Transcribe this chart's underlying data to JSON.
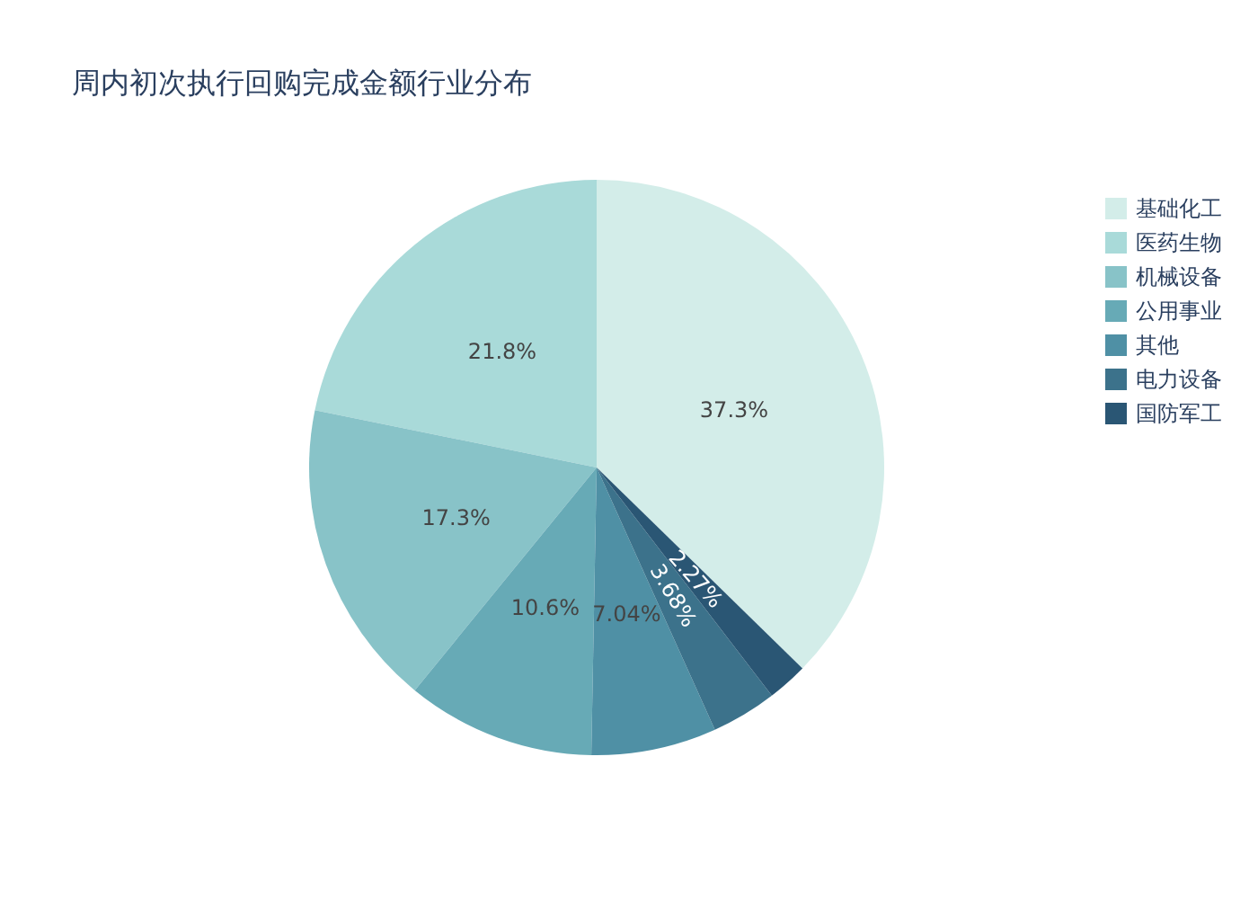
{
  "chart_data": {
    "type": "pie",
    "title": "周内初次执行回购完成金额行业分布",
    "categories": [
      "基础化工",
      "医药生物",
      "机械设备",
      "公用事业",
      "其他",
      "电力设备",
      "国防军工"
    ],
    "values": [
      37.3,
      21.8,
      17.3,
      10.6,
      7.04,
      3.68,
      2.27
    ],
    "value_labels": [
      "37.3%",
      "21.8%",
      "17.3%",
      "10.6%",
      "7.04%",
      "3.68%",
      "2.27%"
    ],
    "colors": [
      "#d3ede9",
      "#a9dad9",
      "#88c3c8",
      "#67aab6",
      "#4f90a5",
      "#3c728b",
      "#2a5674"
    ],
    "legend": "top right"
  }
}
